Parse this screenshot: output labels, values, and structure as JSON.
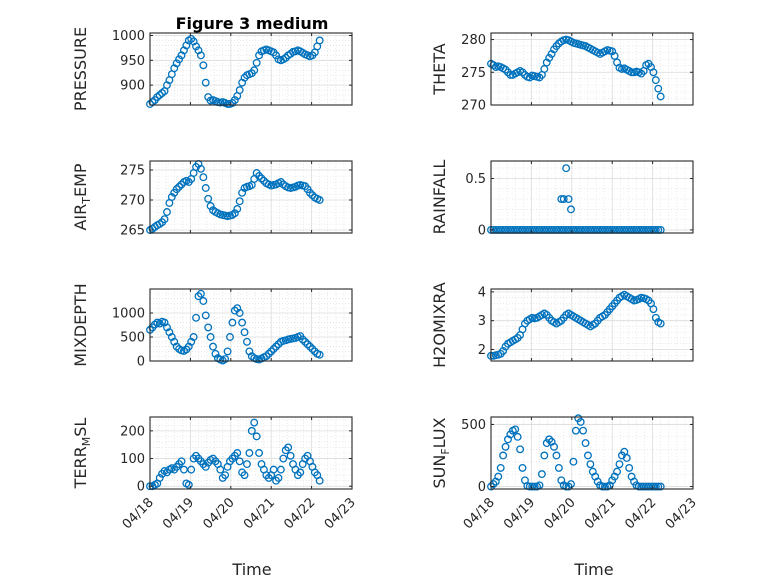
{
  "figure": {
    "title": "Figure 3 medium",
    "xlabel": "Time"
  },
  "colors": {
    "marker": "#0072BD",
    "axis": "#262626",
    "grid": "#dcdcdc"
  },
  "chart_data": [
    {
      "id": "p1",
      "type": "scatter",
      "ylabel": "PRESSURE",
      "ylim": [
        860,
        1005
      ],
      "yticks": [
        900,
        950,
        1000
      ],
      "xlim": [
        0,
        5
      ],
      "xticks": [
        "04/18",
        "04/19",
        "04/20",
        "04/21",
        "04/22",
        "04/23"
      ],
      "show_xticklabels": false,
      "x": [
        0.0,
        0.06,
        0.12,
        0.18,
        0.24,
        0.3,
        0.36,
        0.42,
        0.48,
        0.54,
        0.6,
        0.66,
        0.72,
        0.78,
        0.84,
        0.9,
        0.96,
        1.02,
        1.08,
        1.14,
        1.2,
        1.26,
        1.32,
        1.38,
        1.44,
        1.5,
        1.56,
        1.62,
        1.68,
        1.74,
        1.8,
        1.86,
        1.92,
        1.98,
        2.04,
        2.1,
        2.16,
        2.22,
        2.28,
        2.34,
        2.4,
        2.46,
        2.52,
        2.58,
        2.64,
        2.7,
        2.76,
        2.82,
        2.88,
        2.94,
        3.0,
        3.06,
        3.12,
        3.18,
        3.24,
        3.3,
        3.36,
        3.42,
        3.48,
        3.54,
        3.6,
        3.66,
        3.72,
        3.78,
        3.84,
        3.9,
        3.96,
        4.02,
        4.08,
        4.14,
        4.2
      ],
      "y": [
        862,
        866,
        870,
        876,
        880,
        884,
        888,
        900,
        910,
        922,
        934,
        944,
        952,
        960,
        970,
        980,
        990,
        993,
        988,
        978,
        970,
        960,
        940,
        905,
        876,
        869,
        870,
        868,
        866,
        865,
        866,
        864,
        862,
        862,
        864,
        870,
        878,
        890,
        905,
        915,
        920,
        922,
        924,
        930,
        945,
        960,
        968,
        970,
        972,
        970,
        968,
        966,
        960,
        952,
        950,
        952,
        955,
        960,
        963,
        967,
        968,
        970,
        968,
        965,
        962,
        960,
        958,
        960,
        966,
        978,
        990
      ]
    },
    {
      "id": "p2",
      "type": "scatter",
      "ylabel": "THETA",
      "ylim": [
        270,
        281
      ],
      "yticks": [
        270,
        275,
        280
      ],
      "xlim": [
        0,
        5
      ],
      "xticks": [
        "04/18",
        "04/19",
        "04/20",
        "04/21",
        "04/22",
        "04/23"
      ],
      "show_xticklabels": false,
      "x": [
        0.0,
        0.06,
        0.12,
        0.18,
        0.24,
        0.3,
        0.36,
        0.42,
        0.48,
        0.54,
        0.6,
        0.66,
        0.72,
        0.78,
        0.84,
        0.9,
        0.96,
        1.02,
        1.08,
        1.14,
        1.2,
        1.26,
        1.32,
        1.38,
        1.44,
        1.5,
        1.56,
        1.62,
        1.68,
        1.74,
        1.8,
        1.86,
        1.92,
        1.98,
        2.04,
        2.1,
        2.16,
        2.22,
        2.28,
        2.34,
        2.4,
        2.46,
        2.52,
        2.58,
        2.64,
        2.7,
        2.76,
        2.82,
        2.88,
        2.94,
        3.0,
        3.06,
        3.12,
        3.18,
        3.24,
        3.3,
        3.36,
        3.42,
        3.48,
        3.54,
        3.6,
        3.66,
        3.72,
        3.78,
        3.84,
        3.9,
        3.96,
        4.02,
        4.08,
        4.14,
        4.2
      ],
      "y": [
        276.3,
        276.1,
        275.8,
        275.9,
        275.8,
        275.6,
        275.4,
        275.0,
        274.6,
        274.6,
        274.8,
        275.0,
        275.2,
        275.0,
        274.6,
        274.3,
        274.2,
        274.5,
        274.4,
        274.3,
        274.2,
        274.6,
        275.5,
        276.5,
        277.2,
        277.8,
        278.5,
        279.0,
        279.4,
        279.7,
        279.9,
        280.0,
        279.9,
        279.7,
        279.5,
        279.4,
        279.3,
        279.2,
        279.1,
        279.0,
        278.8,
        278.6,
        278.4,
        278.2,
        278.0,
        277.8,
        278.0,
        278.2,
        278.4,
        278.3,
        278.2,
        277.5,
        276.5,
        275.7,
        275.5,
        275.6,
        275.4,
        275.2,
        275.0,
        275.0,
        275.1,
        275.0,
        274.8,
        275.2,
        276.1,
        276.3,
        275.8,
        275.0,
        273.8,
        272.5,
        271.3
      ]
    },
    {
      "id": "p3",
      "type": "scatter",
      "ylabel": "AIR_TEMP",
      "ylim": [
        264.5,
        276.5
      ],
      "yticks": [
        265,
        270,
        275
      ],
      "xlim": [
        0,
        5
      ],
      "xticks": [
        "04/18",
        "04/19",
        "04/20",
        "04/21",
        "04/22",
        "04/23"
      ],
      "show_xticklabels": false,
      "x": [
        0.0,
        0.06,
        0.12,
        0.18,
        0.24,
        0.3,
        0.36,
        0.42,
        0.48,
        0.54,
        0.6,
        0.66,
        0.72,
        0.78,
        0.84,
        0.9,
        0.96,
        1.02,
        1.08,
        1.14,
        1.2,
        1.26,
        1.32,
        1.38,
        1.44,
        1.5,
        1.56,
        1.62,
        1.68,
        1.74,
        1.8,
        1.86,
        1.92,
        1.98,
        2.04,
        2.1,
        2.16,
        2.22,
        2.28,
        2.34,
        2.4,
        2.46,
        2.52,
        2.58,
        2.64,
        2.7,
        2.76,
        2.82,
        2.88,
        2.94,
        3.0,
        3.06,
        3.12,
        3.18,
        3.24,
        3.3,
        3.36,
        3.42,
        3.48,
        3.54,
        3.6,
        3.66,
        3.72,
        3.78,
        3.84,
        3.9,
        3.96,
        4.02,
        4.08,
        4.14,
        4.2
      ],
      "y": [
        265.0,
        265.2,
        265.5,
        265.8,
        266.0,
        266.3,
        266.8,
        268.0,
        269.5,
        270.5,
        271.2,
        271.8,
        272.2,
        272.6,
        273.0,
        273.2,
        273.0,
        273.5,
        274.5,
        275.5,
        276.0,
        275.2,
        273.8,
        272.0,
        270.2,
        269.0,
        268.3,
        268.0,
        267.8,
        267.6,
        267.5,
        267.4,
        267.3,
        267.4,
        267.5,
        267.8,
        268.5,
        269.8,
        271.2,
        272.0,
        272.2,
        272.3,
        272.5,
        273.5,
        274.5,
        274.0,
        273.6,
        273.2,
        272.8,
        272.6,
        272.4,
        272.5,
        272.6,
        272.8,
        273.0,
        272.6,
        272.3,
        272.1,
        272.0,
        272.1,
        272.2,
        272.4,
        272.5,
        272.4,
        272.3,
        271.8,
        271.2,
        270.8,
        270.4,
        270.2,
        270.0
      ]
    },
    {
      "id": "p4",
      "type": "scatter",
      "ylabel": "RAINFALL",
      "ylim": [
        -0.03,
        0.67
      ],
      "yticks": [
        0,
        0.5
      ],
      "xlim": [
        0,
        5
      ],
      "xticks": [
        "04/18",
        "04/19",
        "04/20",
        "04/21",
        "04/22",
        "04/23"
      ],
      "show_xticklabels": false,
      "x": [
        0.0,
        0.06,
        0.12,
        0.18,
        0.24,
        0.3,
        0.36,
        0.42,
        0.48,
        0.54,
        0.6,
        0.66,
        0.72,
        0.78,
        0.84,
        0.9,
        0.96,
        1.02,
        1.08,
        1.14,
        1.2,
        1.26,
        1.32,
        1.38,
        1.44,
        1.5,
        1.56,
        1.62,
        1.68,
        1.74,
        1.8,
        1.86,
        1.92,
        1.98,
        2.04,
        2.1,
        2.16,
        2.22,
        2.28,
        2.34,
        2.4,
        2.46,
        2.52,
        2.58,
        2.64,
        2.7,
        2.76,
        2.82,
        2.88,
        2.94,
        3.0,
        3.06,
        3.12,
        3.18,
        3.24,
        3.3,
        3.36,
        3.42,
        3.48,
        3.54,
        3.6,
        3.66,
        3.72,
        3.78,
        3.84,
        3.9,
        3.96,
        4.02,
        4.08,
        4.14,
        4.2,
        1.74,
        1.8,
        1.86,
        1.92,
        1.98
      ],
      "y": [
        0,
        0,
        0,
        0,
        0,
        0,
        0,
        0,
        0,
        0,
        0,
        0,
        0,
        0,
        0,
        0,
        0,
        0,
        0,
        0,
        0,
        0,
        0,
        0,
        0,
        0,
        0,
        0,
        0,
        0,
        0,
        0,
        0,
        0,
        0,
        0,
        0,
        0,
        0,
        0,
        0,
        0,
        0,
        0,
        0,
        0,
        0,
        0,
        0,
        0,
        0,
        0,
        0,
        0,
        0,
        0,
        0,
        0,
        0,
        0,
        0,
        0,
        0,
        0,
        0,
        0,
        0,
        0,
        0,
        0,
        0,
        0.3,
        0.3,
        0.6,
        0.3,
        0.2
      ]
    },
    {
      "id": "p5",
      "type": "scatter",
      "ylabel": "MIXDEPTH",
      "ylim": [
        0,
        1500
      ],
      "yticks": [
        0,
        500,
        1000
      ],
      "xlim": [
        0,
        5
      ],
      "xticks": [
        "04/18",
        "04/19",
        "04/20",
        "04/21",
        "04/22",
        "04/23"
      ],
      "show_xticklabels": false,
      "x": [
        0.0,
        0.06,
        0.12,
        0.18,
        0.24,
        0.3,
        0.36,
        0.42,
        0.48,
        0.54,
        0.6,
        0.66,
        0.72,
        0.78,
        0.84,
        0.9,
        0.96,
        1.02,
        1.08,
        1.14,
        1.2,
        1.26,
        1.32,
        1.38,
        1.44,
        1.5,
        1.56,
        1.62,
        1.68,
        1.74,
        1.8,
        1.86,
        1.92,
        1.98,
        2.04,
        2.1,
        2.16,
        2.22,
        2.28,
        2.34,
        2.4,
        2.46,
        2.52,
        2.58,
        2.64,
        2.7,
        2.76,
        2.82,
        2.88,
        2.94,
        3.0,
        3.06,
        3.12,
        3.18,
        3.24,
        3.3,
        3.36,
        3.42,
        3.48,
        3.54,
        3.6,
        3.66,
        3.72,
        3.78,
        3.84,
        3.9,
        3.96,
        4.02,
        4.08,
        4.14,
        4.2
      ],
      "y": [
        650,
        700,
        760,
        800,
        780,
        820,
        800,
        700,
        600,
        500,
        400,
        300,
        250,
        220,
        210,
        240,
        300,
        400,
        500,
        900,
        1350,
        1400,
        1250,
        950,
        700,
        500,
        300,
        150,
        60,
        30,
        10,
        40,
        200,
        500,
        800,
        1050,
        1100,
        1000,
        800,
        600,
        400,
        200,
        100,
        60,
        40,
        30,
        50,
        80,
        100,
        150,
        200,
        250,
        300,
        350,
        400,
        420,
        430,
        450,
        460,
        470,
        480,
        500,
        520,
        450,
        400,
        350,
        300,
        250,
        200,
        150,
        130
      ]
    },
    {
      "id": "p6",
      "type": "scatter",
      "ylabel": "H2OMIXRA",
      "ylim": [
        1.6,
        4.1
      ],
      "yticks": [
        2,
        3,
        4
      ],
      "xlim": [
        0,
        5
      ],
      "xticks": [
        "04/18",
        "04/19",
        "04/20",
        "04/21",
        "04/22",
        "04/23"
      ],
      "show_xticklabels": false,
      "x": [
        0.0,
        0.06,
        0.12,
        0.18,
        0.24,
        0.3,
        0.36,
        0.42,
        0.48,
        0.54,
        0.6,
        0.66,
        0.72,
        0.78,
        0.84,
        0.9,
        0.96,
        1.02,
        1.08,
        1.14,
        1.2,
        1.26,
        1.32,
        1.38,
        1.44,
        1.5,
        1.56,
        1.62,
        1.68,
        1.74,
        1.8,
        1.86,
        1.92,
        1.98,
        2.04,
        2.1,
        2.16,
        2.22,
        2.28,
        2.34,
        2.4,
        2.46,
        2.52,
        2.58,
        2.64,
        2.7,
        2.76,
        2.82,
        2.88,
        2.94,
        3.0,
        3.06,
        3.12,
        3.18,
        3.24,
        3.3,
        3.36,
        3.42,
        3.48,
        3.54,
        3.6,
        3.66,
        3.72,
        3.78,
        3.84,
        3.9,
        3.96,
        4.02,
        4.08,
        4.14,
        4.2
      ],
      "y": [
        1.78,
        1.78,
        1.8,
        1.82,
        1.85,
        1.95,
        2.1,
        2.2,
        2.25,
        2.3,
        2.35,
        2.4,
        2.5,
        2.7,
        2.9,
        3.0,
        3.05,
        3.1,
        3.08,
        3.1,
        3.15,
        3.2,
        3.25,
        3.2,
        3.1,
        3.0,
        2.95,
        2.9,
        2.95,
        3.0,
        3.1,
        3.2,
        3.25,
        3.2,
        3.15,
        3.1,
        3.05,
        3.0,
        2.95,
        2.9,
        2.85,
        2.8,
        2.85,
        2.9,
        3.0,
        3.1,
        3.15,
        3.2,
        3.3,
        3.4,
        3.5,
        3.6,
        3.7,
        3.8,
        3.85,
        3.9,
        3.85,
        3.8,
        3.75,
        3.7,
        3.72,
        3.75,
        3.8,
        3.78,
        3.75,
        3.7,
        3.6,
        3.4,
        3.1,
        2.95,
        2.9
      ]
    },
    {
      "id": "p7",
      "type": "scatter",
      "ylabel": "TERR_MSL",
      "ylim": [
        -10,
        250
      ],
      "yticks": [
        0,
        100,
        200
      ],
      "xlim": [
        0,
        5
      ],
      "xticks": [
        "04/18",
        "04/19",
        "04/20",
        "04/21",
        "04/22",
        "04/23"
      ],
      "show_xticklabels": true,
      "x": [
        0.0,
        0.06,
        0.12,
        0.18,
        0.24,
        0.3,
        0.36,
        0.42,
        0.48,
        0.54,
        0.6,
        0.66,
        0.72,
        0.78,
        0.84,
        0.9,
        0.96,
        1.02,
        1.08,
        1.14,
        1.2,
        1.26,
        1.32,
        1.38,
        1.44,
        1.5,
        1.56,
        1.62,
        1.68,
        1.74,
        1.8,
        1.86,
        1.92,
        1.98,
        2.04,
        2.1,
        2.16,
        2.22,
        2.28,
        2.34,
        2.4,
        2.46,
        2.52,
        2.58,
        2.64,
        2.7,
        2.76,
        2.82,
        2.88,
        2.94,
        3.0,
        3.06,
        3.12,
        3.18,
        3.24,
        3.3,
        3.36,
        3.42,
        3.48,
        3.54,
        3.6,
        3.66,
        3.72,
        3.78,
        3.84,
        3.9,
        3.96,
        4.02,
        4.08,
        4.14,
        4.2
      ],
      "y": [
        0,
        0,
        5,
        10,
        30,
        45,
        55,
        50,
        60,
        65,
        60,
        70,
        80,
        90,
        60,
        10,
        5,
        60,
        100,
        110,
        100,
        90,
        80,
        70,
        85,
        95,
        100,
        90,
        80,
        60,
        30,
        40,
        70,
        90,
        100,
        110,
        120,
        90,
        50,
        40,
        80,
        120,
        200,
        230,
        180,
        120,
        80,
        60,
        40,
        30,
        40,
        60,
        20,
        30,
        60,
        100,
        130,
        140,
        110,
        80,
        60,
        40,
        50,
        80,
        100,
        110,
        90,
        70,
        50,
        40,
        20
      ]
    },
    {
      "id": "p8",
      "type": "scatter",
      "ylabel": "SUN_FLUX",
      "ylim": [
        -20,
        560
      ],
      "yticks": [
        0,
        500
      ],
      "xlim": [
        0,
        5
      ],
      "xticks": [
        "04/18",
        "04/19",
        "04/20",
        "04/21",
        "04/22",
        "04/23"
      ],
      "show_xticklabels": true,
      "x": [
        0.0,
        0.06,
        0.12,
        0.18,
        0.24,
        0.3,
        0.36,
        0.42,
        0.48,
        0.54,
        0.6,
        0.66,
        0.72,
        0.78,
        0.84,
        0.9,
        0.96,
        1.02,
        1.08,
        1.14,
        1.2,
        1.26,
        1.32,
        1.38,
        1.44,
        1.5,
        1.56,
        1.62,
        1.68,
        1.74,
        1.8,
        1.86,
        1.92,
        1.98,
        2.04,
        2.1,
        2.16,
        2.22,
        2.28,
        2.34,
        2.4,
        2.46,
        2.52,
        2.58,
        2.64,
        2.7,
        2.76,
        2.82,
        2.88,
        2.94,
        3.0,
        3.06,
        3.12,
        3.18,
        3.24,
        3.3,
        3.36,
        3.42,
        3.48,
        3.54,
        3.6,
        3.66,
        3.72,
        3.78,
        3.84,
        3.9,
        3.96,
        4.02,
        4.08,
        4.14,
        4.2
      ],
      "y": [
        0,
        20,
        40,
        80,
        150,
        250,
        320,
        380,
        420,
        450,
        460,
        400,
        300,
        150,
        50,
        5,
        0,
        0,
        0,
        0,
        10,
        100,
        250,
        350,
        380,
        360,
        320,
        250,
        150,
        50,
        10,
        0,
        0,
        20,
        200,
        450,
        550,
        520,
        450,
        350,
        250,
        180,
        120,
        80,
        40,
        10,
        0,
        0,
        0,
        10,
        50,
        80,
        120,
        180,
        250,
        280,
        230,
        150,
        80,
        40,
        10,
        0,
        0,
        0,
        0,
        0,
        0,
        0,
        0,
        0,
        0
      ]
    }
  ]
}
